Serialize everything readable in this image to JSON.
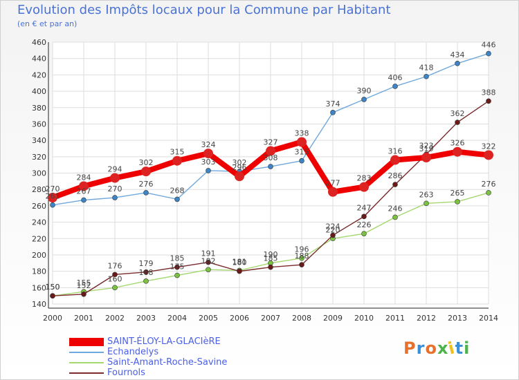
{
  "title": "Evolution des Impôts locaux pour la Commune par Habitant",
  "subtitle": "(en € et par an)",
  "logo": {
    "text": "Proxiti",
    "colors": [
      "#e8702a",
      "#3b8fd6",
      "#e8702a",
      "#4ab34a",
      "#f0c020",
      "#3b8fd6",
      "#4ab34a"
    ]
  },
  "chart_data": {
    "type": "line",
    "title": "Evolution des Impôts locaux pour la Commune par Habitant",
    "subtitle": "(en € et par an)",
    "xlabel": "",
    "ylabel": "",
    "categories": [
      "2000",
      "2001",
      "2002",
      "2003",
      "2004",
      "2005",
      "2006",
      "2007",
      "2008",
      "2009",
      "2010",
      "2011",
      "2012",
      "2013",
      "2014"
    ],
    "ylim": [
      140,
      460
    ],
    "yticks": [
      140,
      160,
      180,
      200,
      220,
      240,
      260,
      280,
      300,
      320,
      340,
      360,
      380,
      400,
      420,
      440,
      460
    ],
    "grid": true,
    "legend_position": "bottom-left",
    "series": [
      {
        "name": "SAINT-ÉLOY-LA-GLACIèRE",
        "color": "#ee0000",
        "marker": "#dd2222",
        "width": 8,
        "values": [
          270,
          284,
          294,
          302,
          315,
          324,
          296,
          327,
          338,
          277,
          283,
          316,
          319,
          326,
          322
        ],
        "labels": [
          "270",
          "284",
          "294",
          "302",
          "315",
          "324",
          "296",
          "327",
          "338",
          "277",
          "283",
          "316",
          "319",
          "326",
          "322"
        ]
      },
      {
        "name": "Echandelys",
        "color": "#6fa8dc",
        "marker": "#3d85c6",
        "width": 1.4,
        "values": [
          261,
          267,
          270,
          276,
          268,
          303,
          302,
          308,
          315,
          374,
          390,
          406,
          418,
          434,
          446
        ],
        "labels": [
          "261",
          "267",
          "270",
          "276",
          "268",
          "303",
          "302",
          "308",
          "315",
          "374",
          "390",
          "406",
          "418",
          "434",
          "446"
        ]
      },
      {
        "name": "Saint-Amant-Roche-Savine",
        "color": "#a4d86e",
        "marker": "#7cc242",
        "width": 1.4,
        "values": [
          150,
          155,
          160,
          168,
          175,
          182,
          181,
          190,
          196,
          220,
          226,
          246,
          263,
          265,
          276
        ],
        "labels": [
          "150",
          "155",
          "160",
          "168",
          "175",
          "182",
          "181",
          "190",
          "196",
          "220",
          "226",
          "246",
          "263",
          "265",
          "276"
        ]
      },
      {
        "name": "Fournols",
        "color": "#7a2a2a",
        "marker": "#6b1a1a",
        "width": 1.4,
        "values": [
          150,
          152,
          176,
          179,
          185,
          191,
          180,
          185,
          188,
          224,
          247,
          286,
          323,
          362,
          388
        ],
        "labels": [
          "150",
          "152",
          "176",
          "179",
          "185",
          "191",
          "180",
          "185",
          "188",
          "224",
          "247",
          "286",
          "323",
          "362",
          "388"
        ]
      }
    ]
  }
}
